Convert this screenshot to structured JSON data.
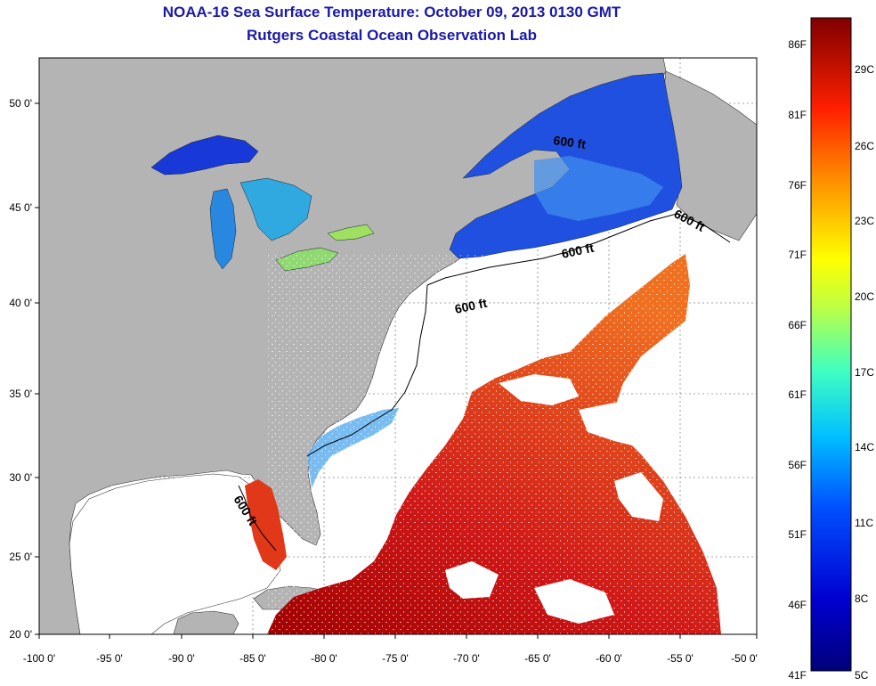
{
  "header": {
    "title": "NOAA-16 Sea Surface Temperature:  October 09, 2013 0130 GMT",
    "subtitle": "Rutgers Coastal Ocean Observation Lab"
  },
  "axes": {
    "x_ticks": [
      "-100 0'",
      "-95 0'",
      "-90 0'",
      "-85 0'",
      "-80 0'",
      "-75 0'",
      "-70 0'",
      "-65 0'",
      "-60 0'",
      "-55 0'",
      "-50 0'"
    ],
    "y_ticks": [
      "50 0'",
      "45 0'",
      "40 0'",
      "35 0'",
      "30 0'",
      "25 0'",
      "20 0'"
    ]
  },
  "contour_labels": [
    "600 ft",
    "600 ft",
    "600 ft",
    "600 ft",
    "600 ft"
  ],
  "colorbar": {
    "fahrenheit": [
      "86F",
      "81F",
      "76F",
      "71F",
      "66F",
      "61F",
      "56F",
      "51F",
      "46F",
      "41F"
    ],
    "celsius": [
      "29C",
      "26C",
      "23C",
      "20C",
      "17C",
      "14C",
      "11C",
      "8C",
      "5C"
    ],
    "colors": [
      "#800000",
      "#d01010",
      "#ff4000",
      "#ff9000",
      "#ffff00",
      "#80ff80",
      "#00e0ff",
      "#0080ff",
      "#0000d0",
      "#00007a"
    ]
  },
  "colors": {
    "land": "#b4b4b4",
    "title": "#1a1aa8",
    "warm": "#e0501a",
    "cold": "#2050e0"
  }
}
